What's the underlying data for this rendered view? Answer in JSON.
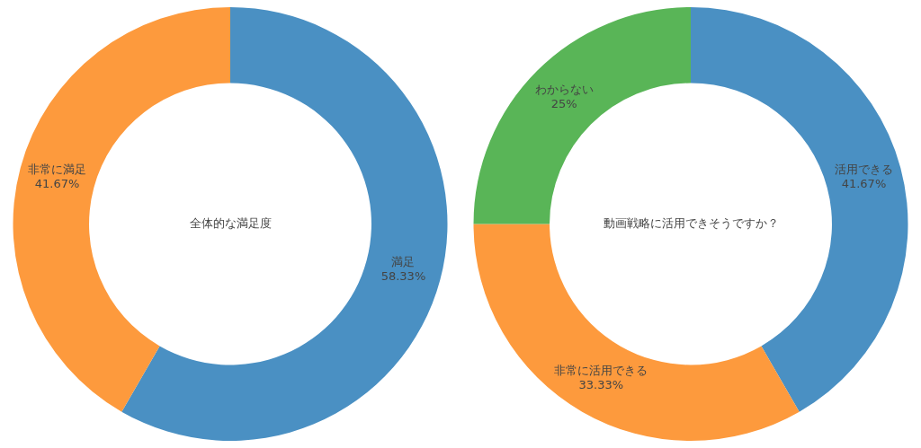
{
  "chart_data": [
    {
      "type": "donut",
      "title": "全体的な満足度",
      "categories": [
        "満足",
        "非常に満足"
      ],
      "values": [
        58.33,
        41.67
      ],
      "colors": [
        "#4a90c3",
        "#fd9a3d"
      ],
      "value_labels": [
        "58.33%",
        "41.67%"
      ],
      "legend": false
    },
    {
      "type": "donut",
      "title": "動画戦略に活用できそうですか？",
      "categories": [
        "活用できる",
        "非常に活用できる",
        "わからない"
      ],
      "values": [
        41.67,
        33.33,
        25
      ],
      "colors": [
        "#4a90c3",
        "#fd9a3d",
        "#59b557"
      ],
      "value_labels": [
        "41.67%",
        "33.33%",
        "25%"
      ],
      "legend": false
    }
  ]
}
